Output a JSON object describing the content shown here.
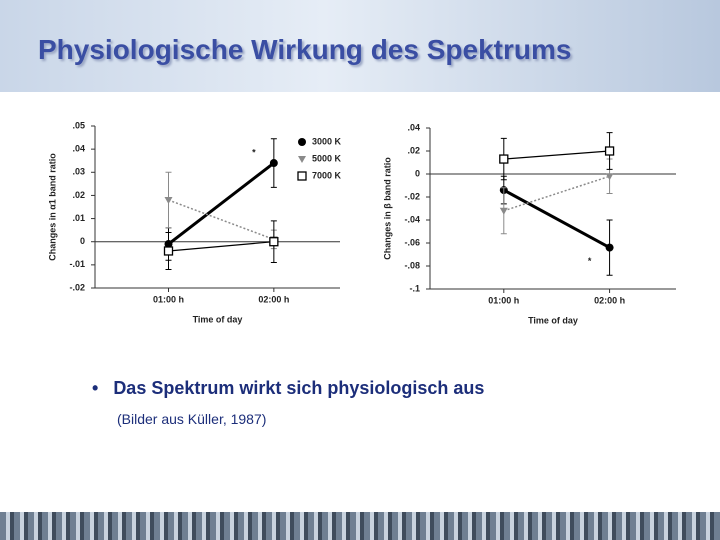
{
  "slide": {
    "title": "Physiologische Wirkung des Spektrums",
    "bullet": "Das Spektrum wirkt sich physiologisch aus",
    "source": "(Bilder aus Küller, 1987)"
  },
  "chart_data": [
    {
      "type": "line",
      "y_label": "Changes in α1 band ratio",
      "x_label": "Time of day",
      "categories": [
        "01:00 h",
        "02:00 h"
      ],
      "ylim": [
        -0.02,
        0.05
      ],
      "yticks": [
        {
          "value": -0.02,
          "label": "-.02"
        },
        {
          "value": -0.01,
          "label": "-.01"
        },
        0,
        {
          "value": 0.01,
          "label": ".01"
        },
        {
          "value": 0.02,
          "label": ".02"
        },
        {
          "value": 0.03,
          "label": ".03"
        },
        {
          "value": 0.04,
          "label": ".04"
        },
        {
          "value": 0.05,
          "label": ".05"
        }
      ],
      "legend": "upper right",
      "annotation": "*",
      "series": [
        {
          "name": "3000 K",
          "color": "#000000",
          "marker": "circle",
          "linestyle": "thick",
          "values": [
            -0.001,
            0.034
          ],
          "errors": [
            0.007,
            0.0105
          ]
        },
        {
          "name": "5000 K",
          "color": "#8a8a8a",
          "marker": "triangle",
          "linestyle": "dotted",
          "values": [
            0.018,
            0.001
          ],
          "errors": [
            0.012,
            0.004
          ]
        },
        {
          "name": "7000 K",
          "color": "#000000",
          "marker": "square",
          "linestyle": "solid",
          "values": [
            -0.004,
            0.0
          ],
          "errors": [
            0.008,
            0.009
          ]
        }
      ]
    },
    {
      "type": "line",
      "y_label": "Changes in β band ratio",
      "x_label": "Time of day",
      "categories": [
        "01:00 h",
        "02:00 h"
      ],
      "ylim": [
        -0.1,
        0.04
      ],
      "yticks": [
        {
          "value": -0.1,
          "label": "-.1"
        },
        {
          "value": -0.08,
          "label": "-.08"
        },
        {
          "value": -0.06,
          "label": "-.06"
        },
        {
          "value": -0.04,
          "label": "-.04"
        },
        {
          "value": -0.02,
          "label": "-.02"
        },
        0,
        {
          "value": 0.02,
          "label": ".02"
        },
        {
          "value": 0.04,
          "label": ".04"
        }
      ],
      "annotation": "*",
      "series": [
        {
          "color": "#000000",
          "marker": "circle",
          "linestyle": "thick",
          "values": [
            -0.014,
            -0.064
          ],
          "errors": [
            0.012,
            0.024
          ]
        },
        {
          "color": "#8a8a8a",
          "marker": "triangle",
          "linestyle": "dotted",
          "values": [
            -0.032,
            -0.002
          ],
          "errors": [
            0.02,
            0.015
          ]
        },
        {
          "color": "#000000",
          "marker": "square",
          "linestyle": "solid",
          "values": [
            0.013,
            0.02
          ],
          "errors": [
            0.018,
            0.016
          ]
        }
      ]
    }
  ]
}
